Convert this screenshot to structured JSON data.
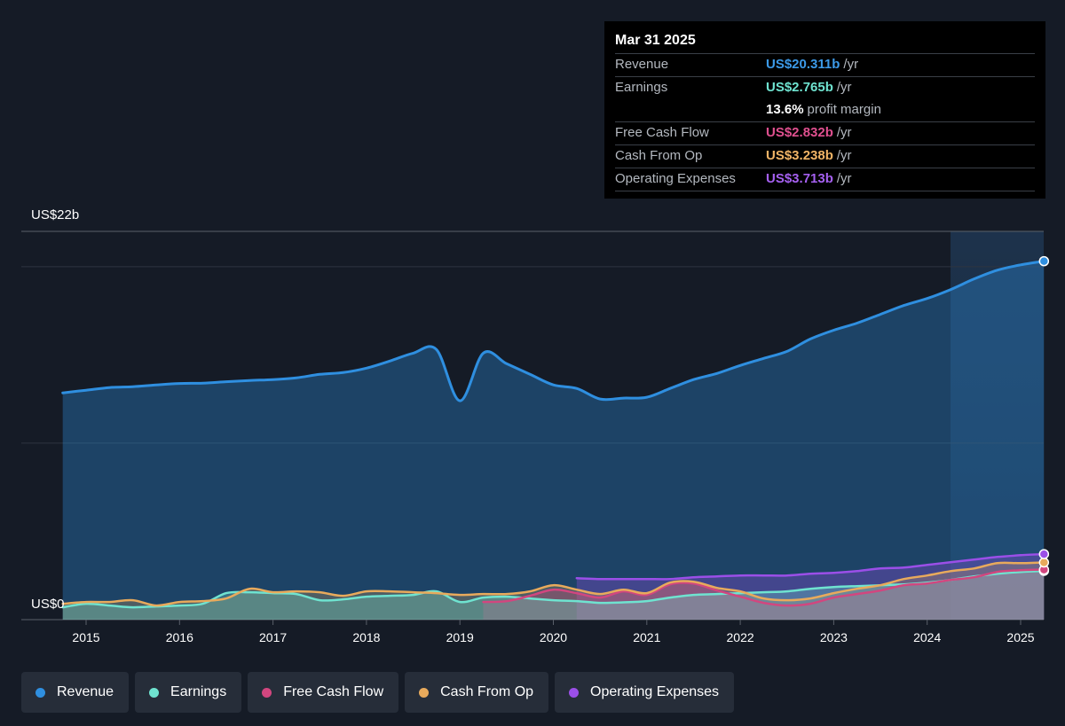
{
  "colors": {
    "revenue": "#2f8fe0",
    "earnings": "#6fe3d0",
    "fcf": "#d2467f",
    "cfo": "#e8aa5c",
    "opex": "#9b4fe8",
    "background": "#151b26"
  },
  "tooltip": {
    "date": "Mar 31 2025",
    "rows": [
      {
        "label": "Revenue",
        "value": "US$20.311b",
        "unit": "/yr",
        "color": "#3c9ae8"
      },
      {
        "label": "Earnings",
        "value": "US$2.765b",
        "unit": "/yr",
        "color": "#6fe3d0"
      },
      {
        "label": "",
        "value": "13.6%",
        "unit": "profit margin",
        "color": "#ffffff"
      },
      {
        "label": "Free Cash Flow",
        "value": "US$2.832b",
        "unit": "/yr",
        "color": "#e0508f"
      },
      {
        "label": "Cash From Op",
        "value": "US$3.238b",
        "unit": "/yr",
        "color": "#f0b466"
      },
      {
        "label": "Operating Expenses",
        "value": "US$3.713b",
        "unit": "/yr",
        "color": "#a560f0"
      }
    ]
  },
  "y_axis": {
    "top_label": "US$22b",
    "bottom_label": "US$0"
  },
  "legend": [
    {
      "label": "Revenue",
      "color": "#2f8fe0"
    },
    {
      "label": "Earnings",
      "color": "#6fe3d0"
    },
    {
      "label": "Free Cash Flow",
      "color": "#d2467f"
    },
    {
      "label": "Cash From Op",
      "color": "#e8aa5c"
    },
    {
      "label": "Operating Expenses",
      "color": "#9b4fe8"
    }
  ],
  "chart_data": {
    "type": "area",
    "ylim": [
      0,
      22
    ],
    "xlim": [
      2014.5,
      2025.25
    ],
    "x_ticks": [
      "2015",
      "2016",
      "2017",
      "2018",
      "2019",
      "2020",
      "2021",
      "2022",
      "2023",
      "2024",
      "2025"
    ],
    "forecast_shade_start": 2024.25,
    "series": [
      {
        "name": "Revenue",
        "key": "revenue",
        "points": [
          [
            2014.75,
            12.85
          ],
          [
            2015.0,
            13.0
          ],
          [
            2015.25,
            13.15
          ],
          [
            2015.5,
            13.2
          ],
          [
            2015.75,
            13.3
          ],
          [
            2016.0,
            13.38
          ],
          [
            2016.25,
            13.4
          ],
          [
            2016.5,
            13.48
          ],
          [
            2016.75,
            13.55
          ],
          [
            2017.0,
            13.6
          ],
          [
            2017.25,
            13.7
          ],
          [
            2017.5,
            13.9
          ],
          [
            2017.75,
            14.0
          ],
          [
            2018.0,
            14.25
          ],
          [
            2018.25,
            14.65
          ],
          [
            2018.5,
            15.1
          ],
          [
            2018.75,
            15.3
          ],
          [
            2019.0,
            12.4
          ],
          [
            2019.25,
            15.1
          ],
          [
            2019.5,
            14.5
          ],
          [
            2019.75,
            13.9
          ],
          [
            2020.0,
            13.3
          ],
          [
            2020.25,
            13.1
          ],
          [
            2020.5,
            12.5
          ],
          [
            2020.75,
            12.55
          ],
          [
            2021.0,
            12.6
          ],
          [
            2021.25,
            13.1
          ],
          [
            2021.5,
            13.6
          ],
          [
            2021.75,
            13.95
          ],
          [
            2022.0,
            14.4
          ],
          [
            2022.25,
            14.8
          ],
          [
            2022.5,
            15.2
          ],
          [
            2022.75,
            15.9
          ],
          [
            2023.0,
            16.4
          ],
          [
            2023.25,
            16.8
          ],
          [
            2023.5,
            17.3
          ],
          [
            2023.75,
            17.8
          ],
          [
            2024.0,
            18.2
          ],
          [
            2024.25,
            18.7
          ],
          [
            2024.5,
            19.3
          ],
          [
            2024.75,
            19.8
          ],
          [
            2025.0,
            20.1
          ],
          [
            2025.25,
            20.311
          ]
        ]
      },
      {
        "name": "Earnings",
        "key": "earnings",
        "points": [
          [
            2014.75,
            0.7
          ],
          [
            2015.0,
            0.9
          ],
          [
            2015.25,
            0.8
          ],
          [
            2015.5,
            0.7
          ],
          [
            2015.75,
            0.75
          ],
          [
            2016.0,
            0.8
          ],
          [
            2016.25,
            0.9
          ],
          [
            2016.5,
            1.5
          ],
          [
            2016.75,
            1.55
          ],
          [
            2017.0,
            1.5
          ],
          [
            2017.25,
            1.45
          ],
          [
            2017.5,
            1.1
          ],
          [
            2017.75,
            1.15
          ],
          [
            2018.0,
            1.3
          ],
          [
            2018.25,
            1.35
          ],
          [
            2018.5,
            1.4
          ],
          [
            2018.75,
            1.6
          ],
          [
            2019.0,
            1.0
          ],
          [
            2019.25,
            1.25
          ],
          [
            2019.5,
            1.3
          ],
          [
            2019.75,
            1.2
          ],
          [
            2020.0,
            1.1
          ],
          [
            2020.25,
            1.05
          ],
          [
            2020.5,
            0.95
          ],
          [
            2020.75,
            0.98
          ],
          [
            2021.0,
            1.05
          ],
          [
            2021.25,
            1.25
          ],
          [
            2021.5,
            1.4
          ],
          [
            2021.75,
            1.45
          ],
          [
            2022.0,
            1.5
          ],
          [
            2022.25,
            1.55
          ],
          [
            2022.5,
            1.6
          ],
          [
            2022.75,
            1.75
          ],
          [
            2023.0,
            1.85
          ],
          [
            2023.25,
            1.9
          ],
          [
            2023.5,
            1.95
          ],
          [
            2023.75,
            2.0
          ],
          [
            2024.0,
            2.1
          ],
          [
            2024.25,
            2.25
          ],
          [
            2024.5,
            2.45
          ],
          [
            2024.75,
            2.6
          ],
          [
            2025.0,
            2.7
          ],
          [
            2025.25,
            2.765
          ]
        ]
      },
      {
        "name": "Free Cash Flow",
        "key": "fcf",
        "points": [
          [
            2019.25,
            1.0
          ],
          [
            2019.5,
            1.05
          ],
          [
            2019.75,
            1.35
          ],
          [
            2020.0,
            1.7
          ],
          [
            2020.25,
            1.5
          ],
          [
            2020.5,
            1.25
          ],
          [
            2020.75,
            1.6
          ],
          [
            2021.0,
            1.4
          ],
          [
            2021.25,
            2.0
          ],
          [
            2021.5,
            2.05
          ],
          [
            2021.75,
            1.65
          ],
          [
            2022.0,
            1.3
          ],
          [
            2022.25,
            0.95
          ],
          [
            2022.5,
            0.8
          ],
          [
            2022.75,
            0.9
          ],
          [
            2023.0,
            1.25
          ],
          [
            2023.25,
            1.45
          ],
          [
            2023.5,
            1.65
          ],
          [
            2023.75,
            1.95
          ],
          [
            2024.0,
            2.05
          ],
          [
            2024.25,
            2.25
          ],
          [
            2024.5,
            2.4
          ],
          [
            2024.75,
            2.7
          ],
          [
            2025.0,
            2.8
          ],
          [
            2025.25,
            2.832
          ]
        ]
      },
      {
        "name": "Cash From Op",
        "key": "cfo",
        "points": [
          [
            2014.75,
            0.9
          ],
          [
            2015.0,
            1.0
          ],
          [
            2015.25,
            1.0
          ],
          [
            2015.5,
            1.1
          ],
          [
            2015.75,
            0.8
          ],
          [
            2016.0,
            1.0
          ],
          [
            2016.25,
            1.05
          ],
          [
            2016.5,
            1.2
          ],
          [
            2016.75,
            1.75
          ],
          [
            2017.0,
            1.55
          ],
          [
            2017.25,
            1.6
          ],
          [
            2017.5,
            1.55
          ],
          [
            2017.75,
            1.35
          ],
          [
            2018.0,
            1.6
          ],
          [
            2018.25,
            1.6
          ],
          [
            2018.5,
            1.55
          ],
          [
            2018.75,
            1.5
          ],
          [
            2019.0,
            1.4
          ],
          [
            2019.25,
            1.45
          ],
          [
            2019.5,
            1.45
          ],
          [
            2019.75,
            1.6
          ],
          [
            2020.0,
            1.95
          ],
          [
            2020.25,
            1.7
          ],
          [
            2020.5,
            1.45
          ],
          [
            2020.75,
            1.7
          ],
          [
            2021.0,
            1.5
          ],
          [
            2021.25,
            2.1
          ],
          [
            2021.5,
            2.15
          ],
          [
            2021.75,
            1.8
          ],
          [
            2022.0,
            1.6
          ],
          [
            2022.25,
            1.2
          ],
          [
            2022.5,
            1.1
          ],
          [
            2022.75,
            1.2
          ],
          [
            2023.0,
            1.5
          ],
          [
            2023.25,
            1.75
          ],
          [
            2023.5,
            1.95
          ],
          [
            2023.75,
            2.3
          ],
          [
            2024.0,
            2.5
          ],
          [
            2024.25,
            2.75
          ],
          [
            2024.5,
            2.9
          ],
          [
            2024.75,
            3.2
          ],
          [
            2025.0,
            3.2
          ],
          [
            2025.25,
            3.238
          ]
        ]
      },
      {
        "name": "Operating Expenses",
        "key": "opex",
        "points": [
          [
            2020.25,
            2.35
          ],
          [
            2020.5,
            2.3
          ],
          [
            2020.75,
            2.3
          ],
          [
            2021.0,
            2.3
          ],
          [
            2021.25,
            2.3
          ],
          [
            2021.5,
            2.4
          ],
          [
            2021.75,
            2.45
          ],
          [
            2022.0,
            2.5
          ],
          [
            2022.25,
            2.5
          ],
          [
            2022.5,
            2.5
          ],
          [
            2022.75,
            2.6
          ],
          [
            2023.0,
            2.65
          ],
          [
            2023.25,
            2.75
          ],
          [
            2023.5,
            2.9
          ],
          [
            2023.75,
            2.95
          ],
          [
            2024.0,
            3.1
          ],
          [
            2024.25,
            3.25
          ],
          [
            2024.5,
            3.4
          ],
          [
            2024.75,
            3.55
          ],
          [
            2025.0,
            3.65
          ],
          [
            2025.25,
            3.713
          ]
        ]
      }
    ]
  }
}
